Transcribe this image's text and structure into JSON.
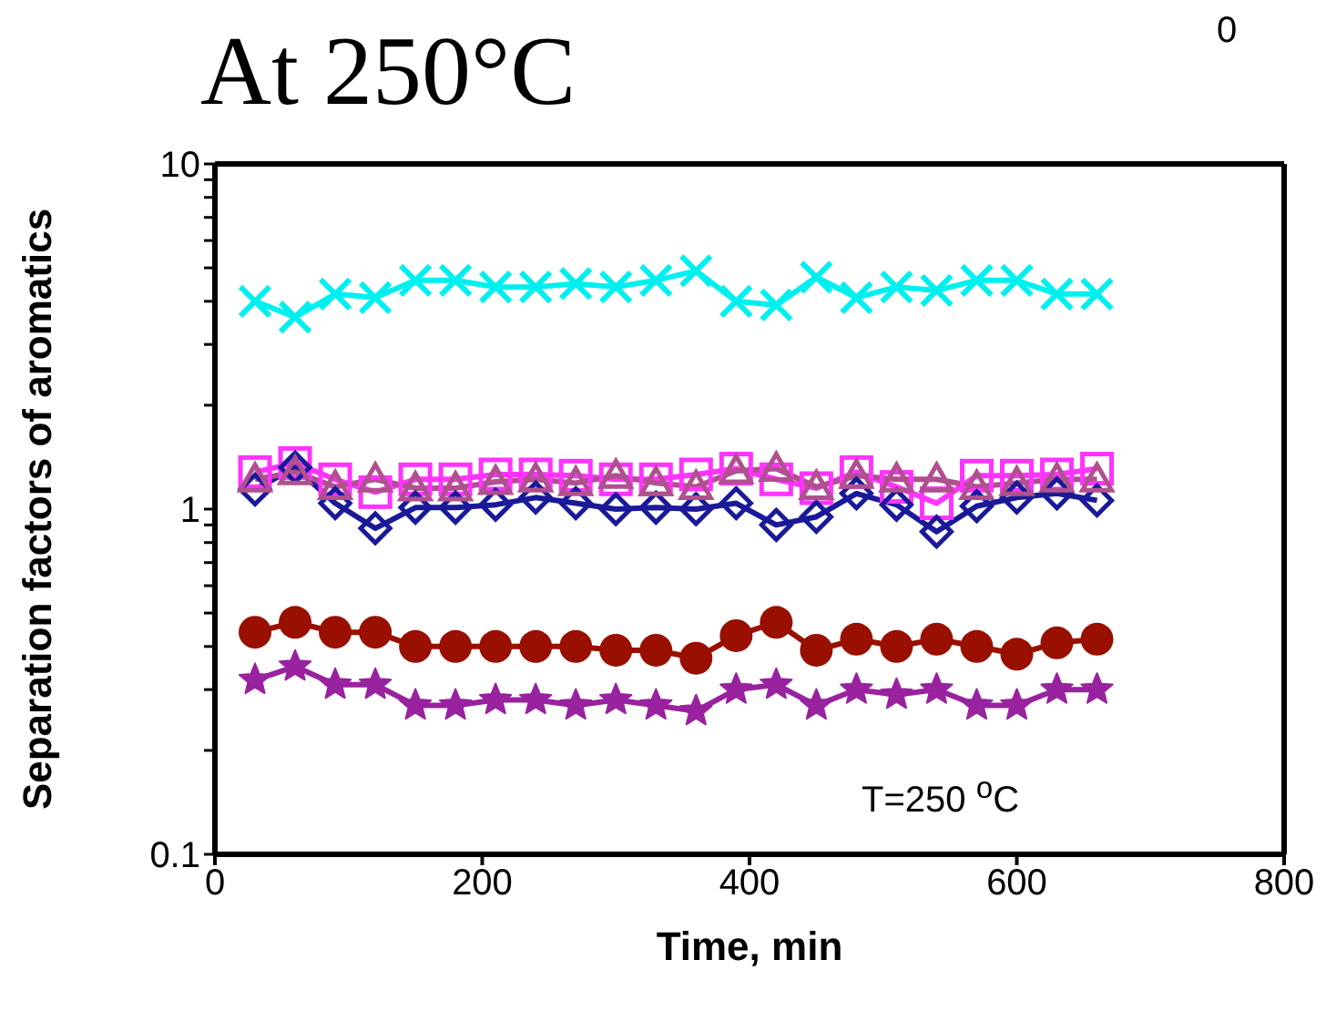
{
  "chart_data": {
    "type": "line",
    "title": "At 250°C",
    "xlabel": "Time, min",
    "ylabel": "Separation factors of aromatics",
    "annotations": [
      "T=250 $^{o}$C",
      "0"
    ],
    "x": [
      30,
      60,
      90,
      120,
      150,
      180,
      210,
      240,
      270,
      300,
      330,
      360,
      390,
      420,
      450,
      480,
      510,
      540,
      570,
      600,
      630,
      660
    ],
    "series": [
      {
        "color": "#00f0f0",
        "marker": "cross",
        "values": [
          4.0,
          3.6,
          4.2,
          4.1,
          4.6,
          4.6,
          4.4,
          4.4,
          4.5,
          4.4,
          4.6,
          4.9,
          4.0,
          3.9,
          4.7,
          4.1,
          4.4,
          4.3,
          4.6,
          4.6,
          4.2,
          4.2
        ]
      },
      {
        "color": "#ff33ff",
        "marker": "square",
        "values": [
          1.28,
          1.36,
          1.22,
          1.12,
          1.22,
          1.22,
          1.26,
          1.26,
          1.25,
          1.22,
          1.22,
          1.26,
          1.31,
          1.22,
          1.15,
          1.28,
          1.16,
          1.04,
          1.25,
          1.25,
          1.26,
          1.31
        ]
      },
      {
        "color": "#1a1a99",
        "marker": "diamond",
        "values": [
          1.14,
          1.32,
          1.04,
          0.88,
          1.01,
          1.01,
          1.03,
          1.08,
          1.04,
          1.0,
          1.01,
          1.0,
          1.04,
          0.9,
          0.95,
          1.11,
          1.03,
          0.86,
          1.02,
          1.08,
          1.11,
          1.06
        ]
      },
      {
        "color": "#b0508f",
        "marker": "triangle",
        "values": [
          1.22,
          1.28,
          1.16,
          1.22,
          1.15,
          1.15,
          1.2,
          1.22,
          1.19,
          1.25,
          1.19,
          1.16,
          1.29,
          1.31,
          1.16,
          1.25,
          1.22,
          1.22,
          1.16,
          1.19,
          1.22,
          1.22
        ]
      },
      {
        "color": "#990f00",
        "marker": "circle",
        "values": [
          0.44,
          0.47,
          0.44,
          0.44,
          0.4,
          0.4,
          0.4,
          0.4,
          0.4,
          0.39,
          0.39,
          0.37,
          0.43,
          0.47,
          0.39,
          0.42,
          0.4,
          0.42,
          0.4,
          0.38,
          0.41,
          0.42
        ]
      },
      {
        "color": "#99229f",
        "marker": "star",
        "values": [
          0.32,
          0.35,
          0.31,
          0.31,
          0.27,
          0.27,
          0.28,
          0.28,
          0.27,
          0.28,
          0.27,
          0.26,
          0.3,
          0.31,
          0.27,
          0.3,
          0.29,
          0.3,
          0.27,
          0.27,
          0.3,
          0.3
        ]
      }
    ],
    "xlim": [
      0,
      800
    ],
    "xticks": [
      0,
      200,
      400,
      600,
      800
    ],
    "log": true,
    "ylim": [
      0.1,
      10
    ],
    "yticks": [
      0.1,
      {
        "value": 0.2,
        "label": null
      },
      {
        "value": 0.3,
        "label": null
      },
      {
        "value": 0.4,
        "label": null
      },
      {
        "value": 0.5,
        "label": null
      },
      {
        "value": 0.6,
        "label": null
      },
      {
        "value": 0.7,
        "label": null
      },
      {
        "value": 0.8,
        "label": null
      },
      {
        "value": 0.9,
        "label": null
      },
      1,
      {
        "value": 2,
        "label": null
      },
      {
        "value": 3,
        "label": null
      },
      {
        "value": 4,
        "label": null
      },
      {
        "value": 5,
        "label": null
      },
      {
        "value": 6,
        "label": null
      },
      {
        "value": 7,
        "label": null
      },
      {
        "value": 8,
        "label": null
      },
      {
        "value": 9,
        "label": null
      },
      10
    ],
    "grid": false,
    "legend": false
  }
}
